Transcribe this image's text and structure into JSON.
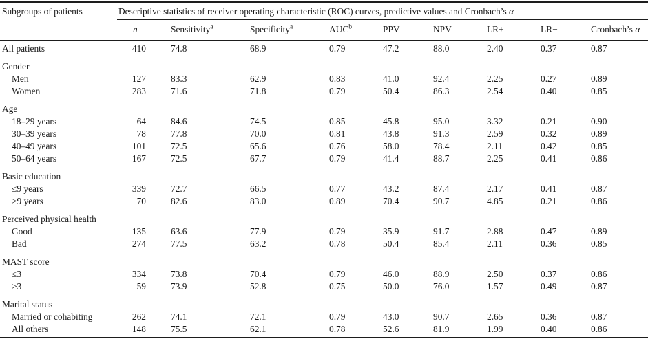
{
  "table": {
    "corner_header": "Subgroups of patients",
    "span_header": {
      "text": "Descriptive statistics of receiver operating characteristic (ROC) curves, predictive values and Cronbach’s ",
      "alpha": "α"
    },
    "columns": [
      {
        "key": "n",
        "label": "n"
      },
      {
        "key": "sensitivity",
        "label": "Sensitivity",
        "sup": "a"
      },
      {
        "key": "specificity",
        "label": "Specificity",
        "sup": "a"
      },
      {
        "key": "auc",
        "label": "AUC",
        "sup": "b"
      },
      {
        "key": "ppv",
        "label": "PPV"
      },
      {
        "key": "npv",
        "label": "NPV"
      },
      {
        "key": "lr_plus",
        "label": "LR+"
      },
      {
        "key": "lr_minus",
        "label": "LR−"
      },
      {
        "key": "cronbach_alpha",
        "label": "Cronbach’s ",
        "alpha": "α"
      }
    ],
    "rows": [
      {
        "type": "data",
        "indent": false,
        "label": "All patients",
        "values": [
          "410",
          "74.8",
          "68.9",
          "0.79",
          "47.2",
          "88.0",
          "2.40",
          "0.37",
          "0.87"
        ]
      },
      {
        "type": "group",
        "label": "Gender"
      },
      {
        "type": "data",
        "indent": true,
        "label": "Men",
        "values": [
          "127",
          "83.3",
          "62.9",
          "0.83",
          "41.0",
          "92.4",
          "2.25",
          "0.27",
          "0.89"
        ]
      },
      {
        "type": "data",
        "indent": true,
        "label": "Women",
        "values": [
          "283",
          "71.6",
          "71.8",
          "0.79",
          "50.4",
          "86.3",
          "2.54",
          "0.40",
          "0.85"
        ]
      },
      {
        "type": "group",
        "label": "Age"
      },
      {
        "type": "data",
        "indent": true,
        "label": "18–29 years",
        "values": [
          "64",
          "84.6",
          "74.5",
          "0.85",
          "45.8",
          "95.0",
          "3.32",
          "0.21",
          "0.90"
        ]
      },
      {
        "type": "data",
        "indent": true,
        "label": "30–39 years",
        "values": [
          "78",
          "77.8",
          "70.0",
          "0.81",
          "43.8",
          "91.3",
          "2.59",
          "0.32",
          "0.89"
        ]
      },
      {
        "type": "data",
        "indent": true,
        "label": "40–49 years",
        "values": [
          "101",
          "72.5",
          "65.6",
          "0.76",
          "58.0",
          "78.4",
          "2.11",
          "0.42",
          "0.85"
        ]
      },
      {
        "type": "data",
        "indent": true,
        "label": "50–64 years",
        "values": [
          "167",
          "72.5",
          "67.7",
          "0.79",
          "41.4",
          "88.7",
          "2.25",
          "0.41",
          "0.86"
        ]
      },
      {
        "type": "group",
        "label": "Basic education"
      },
      {
        "type": "data",
        "indent": true,
        "label": "≤9 years",
        "values": [
          "339",
          "72.7",
          "66.5",
          "0.77",
          "43.2",
          "87.4",
          "2.17",
          "0.41",
          "0.87"
        ]
      },
      {
        "type": "data",
        "indent": true,
        "label": ">9 years",
        "values": [
          "70",
          "82.6",
          "83.0",
          "0.89",
          "70.4",
          "90.7",
          "4.85",
          "0.21",
          "0.86"
        ]
      },
      {
        "type": "group",
        "label": "Perceived physical health"
      },
      {
        "type": "data",
        "indent": true,
        "label": "Good",
        "values": [
          "135",
          "63.6",
          "77.9",
          "0.79",
          "35.9",
          "91.7",
          "2.88",
          "0.47",
          "0.89"
        ]
      },
      {
        "type": "data",
        "indent": true,
        "label": "Bad",
        "values": [
          "274",
          "77.5",
          "63.2",
          "0.78",
          "50.4",
          "85.4",
          "2.11",
          "0.36",
          "0.85"
        ]
      },
      {
        "type": "group",
        "label": "MAST score"
      },
      {
        "type": "data",
        "indent": true,
        "label": "≤3",
        "values": [
          "334",
          "73.8",
          "70.4",
          "0.79",
          "46.0",
          "88.9",
          "2.50",
          "0.37",
          "0.86"
        ]
      },
      {
        "type": "data",
        "indent": true,
        "label": ">3",
        "values": [
          "59",
          "73.9",
          "52.8",
          "0.75",
          "50.0",
          "76.0",
          "1.57",
          "0.49",
          "0.87"
        ]
      },
      {
        "type": "group",
        "label": "Marital status"
      },
      {
        "type": "data",
        "indent": true,
        "label": "Married or cohabiting",
        "values": [
          "262",
          "74.1",
          "72.1",
          "0.79",
          "43.0",
          "90.7",
          "2.65",
          "0.36",
          "0.87"
        ]
      },
      {
        "type": "data",
        "indent": true,
        "label": "All others",
        "values": [
          "148",
          "75.5",
          "62.1",
          "0.78",
          "52.6",
          "81.9",
          "1.99",
          "0.40",
          "0.86"
        ]
      }
    ]
  }
}
